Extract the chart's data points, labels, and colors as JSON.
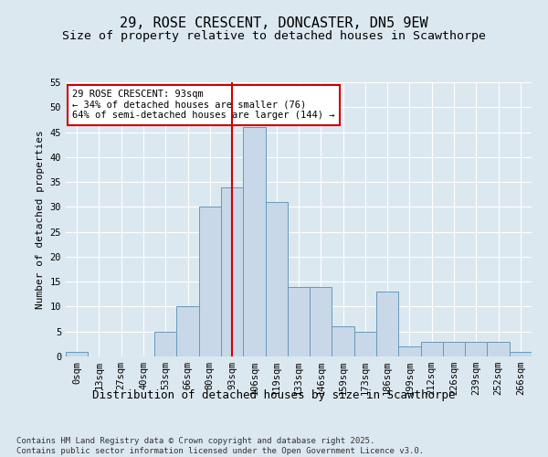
{
  "title_line1": "29, ROSE CRESCENT, DONCASTER, DN5 9EW",
  "title_line2": "Size of property relative to detached houses in Scawthorpe",
  "xlabel": "Distribution of detached houses by size in Scawthorpe",
  "ylabel": "Number of detached properties",
  "footnote": "Contains HM Land Registry data © Crown copyright and database right 2025.\nContains public sector information licensed under the Open Government Licence v3.0.",
  "bar_labels": [
    "0sqm",
    "13sqm",
    "27sqm",
    "40sqm",
    "53sqm",
    "66sqm",
    "80sqm",
    "93sqm",
    "106sqm",
    "119sqm",
    "133sqm",
    "146sqm",
    "159sqm",
    "173sqm",
    "186sqm",
    "199sqm",
    "212sqm",
    "226sqm",
    "239sqm",
    "252sqm",
    "266sqm"
  ],
  "bar_values": [
    1,
    0,
    0,
    0,
    5,
    10,
    30,
    34,
    46,
    31,
    14,
    14,
    6,
    5,
    13,
    2,
    3,
    3,
    3,
    3,
    1
  ],
  "bar_color": "#c8d8e8",
  "bar_edge_color": "#6699bb",
  "red_line_index": 7.5,
  "annotation_text": "29 ROSE CRESCENT: 93sqm\n← 34% of detached houses are smaller (76)\n64% of semi-detached houses are larger (144) →",
  "annotation_box_color": "#ffffff",
  "annotation_box_edge_color": "#cc0000",
  "red_line_color": "#cc0000",
  "ylim": [
    0,
    55
  ],
  "yticks": [
    0,
    5,
    10,
    15,
    20,
    25,
    30,
    35,
    40,
    45,
    50,
    55
  ],
  "background_color": "#dce8f0",
  "plot_bg_color": "#dce8f0",
  "grid_color": "#ffffff",
  "title1_fontsize": 11,
  "title2_fontsize": 9.5,
  "xlabel_fontsize": 9,
  "ylabel_fontsize": 8,
  "tick_fontsize": 7.5,
  "annot_fontsize": 7.5,
  "footnote_fontsize": 6.5
}
